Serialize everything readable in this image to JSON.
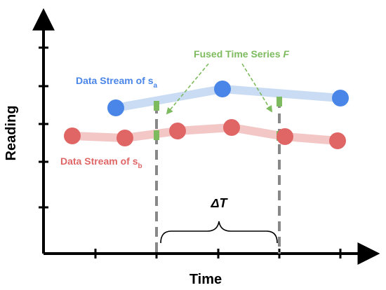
{
  "axes": {
    "y_label": "Reading",
    "x_label": "Time"
  },
  "annotations": {
    "fused_label": "Fused Time Series F",
    "fused_prefix": "Fused Time Series ",
    "fused_var": "F",
    "stream_a_label": "Data Stream of s",
    "stream_a_sub": "a",
    "stream_b_label": "Data Stream of s",
    "stream_b_sub": "b",
    "delta_label": "ΔT"
  },
  "colors": {
    "axis": "#000000",
    "stream_a": "#4a86e8",
    "stream_a_line": "#c9dcf3",
    "stream_b": "#e06666",
    "stream_b_line": "#f4c7c7",
    "fused": "#7dbb5e",
    "dashed_guide": "#888888"
  }
}
